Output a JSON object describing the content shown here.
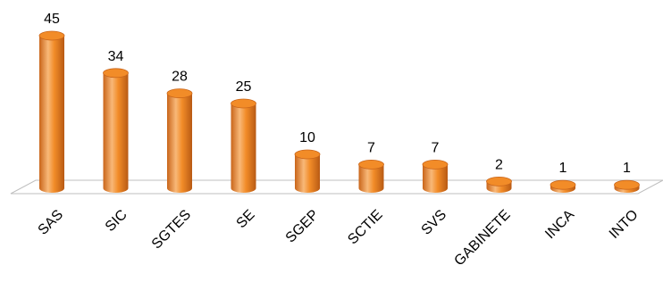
{
  "chart_data": {
    "type": "bar",
    "style": "3d-cylinder",
    "categories": [
      "SAS",
      "SIC",
      "SGTES",
      "SE",
      "SGEP",
      "SCTIE",
      "SVS",
      "GABINETE",
      "INCA",
      "INTO"
    ],
    "values": [
      45,
      34,
      28,
      25,
      10,
      7,
      7,
      2,
      1,
      1
    ],
    "data_labels": [
      "45",
      "34",
      "28",
      "25",
      "10",
      "7",
      "7",
      "2",
      "1",
      "1"
    ],
    "title": "",
    "xlabel": "",
    "ylabel": "",
    "ylim": [
      0,
      45
    ],
    "grid": false,
    "legend": "none",
    "bar_color": "#F28C28",
    "bar_shade": "#C9651A",
    "bar_highlight": "#F8B878"
  }
}
